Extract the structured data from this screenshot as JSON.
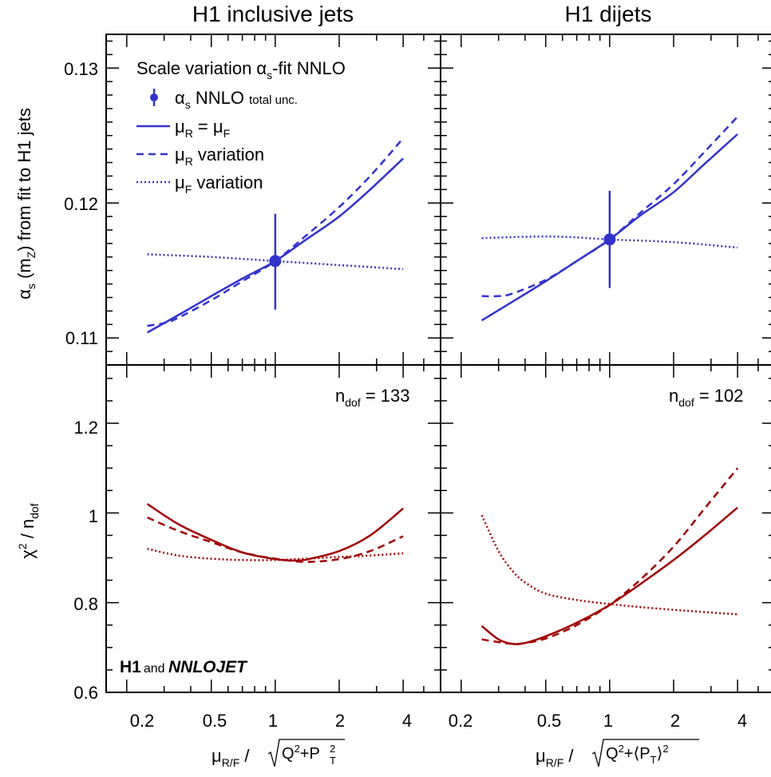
{
  "titles": {
    "left": "H1 inclusive jets",
    "right": "H1 dijets"
  },
  "axes": {
    "top_ylabel": {
      "a": "α",
      "a_sub": "s",
      "b": " (m",
      "b_sub": "Z",
      "c": ") from fit to H1 jets"
    },
    "bottom_ylabel": {
      "chi": "χ",
      "sup": "2",
      "mid": " / n",
      "sub": "dof"
    },
    "xlabel_left": {
      "mu": "μ",
      "sub": "R/F",
      "slash": " / ",
      "q": "Q",
      "q_sup": "2",
      "plus": "+P",
      "p_sup": "2",
      "p_sub": "T"
    },
    "xlabel_right": {
      "mu": "μ",
      "sub": "R/F",
      "slash": " / ",
      "q": "Q",
      "q_sup": "2",
      "plus": "+⟨P",
      "p_sub": "T",
      "close": "⟩",
      "close_sup": "2"
    },
    "top_yticks": [
      "0.11",
      "0.12",
      "0.13"
    ],
    "bottom_yticks": [
      "0.6",
      "0.8",
      "1",
      "1.2"
    ],
    "xticks": [
      "0.2",
      "0.5",
      "1",
      "2",
      "4"
    ]
  },
  "legend": {
    "title": {
      "pre": "Scale variation ",
      "a": "α",
      "a_sub": "s",
      "post": "-fit NNLO"
    },
    "point": {
      "a": "α",
      "a_sub": "s",
      "label": " NNLO ",
      "small": "total unc."
    },
    "solid": {
      "mu": "μ",
      "sub": "R",
      "eq": " = μ",
      "sub2": "F"
    },
    "dashed": {
      "mu": "μ",
      "sub": "R",
      "label": " variation"
    },
    "dotted": {
      "mu": "μ",
      "sub": "F",
      "label": " variation"
    }
  },
  "ndof": {
    "left": {
      "n": "n",
      "sub": "dof",
      "eq": " = 133"
    },
    "right": {
      "n": "n",
      "sub": "dof",
      "eq": " = 102"
    }
  },
  "logo": {
    "h1": "H1",
    "and": "and ",
    "nnlojet": "NNLOJET"
  },
  "colors": {
    "alphas": "#3333cc",
    "chi2": "#a00000",
    "frame": "#000000"
  },
  "chart_data": [
    {
      "type": "line",
      "panel": "top-left",
      "title": "H1 inclusive jets",
      "xscale": "log",
      "xlim": [
        0.16,
        6.0
      ],
      "ylim": [
        0.108,
        0.1325
      ],
      "series": [
        {
          "name": "μR = μF",
          "style": "solid",
          "x": [
            0.25,
            0.35,
            0.5,
            0.7,
            1.0,
            1.4,
            2.0,
            2.8,
            4.0
          ],
          "y": [
            0.1104,
            0.1117,
            0.1131,
            0.1144,
            0.1157,
            0.1173,
            0.119,
            0.121,
            0.1233
          ]
        },
        {
          "name": "μR variation",
          "style": "dashed",
          "x": [
            0.25,
            0.3,
            0.35,
            0.5,
            0.7,
            1.0,
            1.4,
            2.0,
            2.8,
            4.0
          ],
          "y": [
            0.1109,
            0.1111,
            0.1115,
            0.1128,
            0.1142,
            0.1157,
            0.1176,
            0.1197,
            0.122,
            0.1248
          ]
        },
        {
          "name": "μF variation",
          "style": "dotted",
          "x": [
            0.25,
            0.5,
            1.0,
            2.0,
            4.0
          ],
          "y": [
            0.1162,
            0.116,
            0.1157,
            0.1154,
            0.1151
          ]
        }
      ],
      "points": [
        {
          "x": 1.0,
          "y": 0.1157,
          "err_lo": 0.1121,
          "err_hi": 0.1192,
          "label": "αs NNLO total unc."
        }
      ]
    },
    {
      "type": "line",
      "panel": "top-right",
      "title": "H1 dijets",
      "xscale": "log",
      "xlim": [
        0.16,
        6.0
      ],
      "ylim": [
        0.108,
        0.1325
      ],
      "series": [
        {
          "name": "μR = μF",
          "style": "solid",
          "x": [
            0.25,
            0.35,
            0.5,
            0.7,
            1.0,
            1.4,
            2.0,
            2.8,
            4.0
          ],
          "y": [
            0.1113,
            0.1127,
            0.1142,
            0.1157,
            0.1173,
            0.1191,
            0.1208,
            0.1229,
            0.1251
          ]
        },
        {
          "name": "μR variation",
          "style": "dashed",
          "x": [
            0.25,
            0.3,
            0.35,
            0.5,
            0.7,
            1.0,
            1.4,
            2.0,
            2.8,
            4.0
          ],
          "y": [
            0.1131,
            0.1131,
            0.1133,
            0.1143,
            0.1157,
            0.1173,
            0.1193,
            0.1214,
            0.1238,
            0.1264
          ]
        },
        {
          "name": "μF variation",
          "style": "dotted",
          "x": [
            0.25,
            0.4,
            0.6,
            1.0,
            2.0,
            4.0
          ],
          "y": [
            0.1174,
            0.1175,
            0.1175,
            0.1173,
            0.1171,
            0.1167
          ]
        }
      ],
      "points": [
        {
          "x": 1.0,
          "y": 0.1173,
          "err_lo": 0.1137,
          "err_hi": 0.1209,
          "label": "αs NNLO total unc."
        }
      ]
    },
    {
      "type": "line",
      "panel": "bottom-left",
      "xlabel": "μR/F / √(Q²+P²T)",
      "xscale": "log",
      "xlim": [
        0.16,
        6.0
      ],
      "ylim": [
        0.6,
        1.33
      ],
      "annotation": "ndof = 133",
      "series": [
        {
          "name": "μR = μF",
          "style": "solid",
          "x": [
            0.25,
            0.35,
            0.5,
            0.7,
            1.0,
            1.2,
            1.4,
            2.0,
            2.8,
            4.0
          ],
          "y": [
            1.02,
            0.975,
            0.94,
            0.912,
            0.897,
            0.894,
            0.896,
            0.915,
            0.95,
            1.01
          ]
        },
        {
          "name": "μR variation",
          "style": "dashed",
          "x": [
            0.25,
            0.35,
            0.5,
            0.7,
            1.0,
            1.4,
            2.0,
            2.8,
            4.0
          ],
          "y": [
            0.99,
            0.96,
            0.935,
            0.912,
            0.898,
            0.891,
            0.897,
            0.915,
            0.948
          ]
        },
        {
          "name": "μF variation",
          "style": "dotted",
          "x": [
            0.25,
            0.35,
            0.5,
            0.7,
            1.0,
            1.4,
            2.0,
            2.8,
            4.0
          ],
          "y": [
            0.92,
            0.905,
            0.898,
            0.895,
            0.895,
            0.898,
            0.902,
            0.905,
            0.91
          ]
        }
      ]
    },
    {
      "type": "line",
      "panel": "bottom-right",
      "xlabel": "μR/F / √(Q²+⟨PT⟩²)",
      "xscale": "log",
      "xlim": [
        0.16,
        6.0
      ],
      "ylim": [
        0.6,
        1.33
      ],
      "annotation": "ndof = 102",
      "series": [
        {
          "name": "μR = μF",
          "style": "solid",
          "x": [
            0.25,
            0.3,
            0.35,
            0.4,
            0.5,
            0.7,
            1.0,
            1.4,
            2.0,
            2.8,
            4.0
          ],
          "y": [
            0.748,
            0.718,
            0.708,
            0.71,
            0.725,
            0.755,
            0.795,
            0.842,
            0.895,
            0.95,
            1.012
          ]
        },
        {
          "name": "μR variation",
          "style": "dashed",
          "x": [
            0.25,
            0.3,
            0.35,
            0.4,
            0.5,
            0.7,
            1.0,
            1.4,
            2.0,
            2.8,
            4.0
          ],
          "y": [
            0.718,
            0.712,
            0.708,
            0.71,
            0.72,
            0.75,
            0.795,
            0.852,
            0.925,
            1.01,
            1.1
          ]
        },
        {
          "name": "μF variation",
          "style": "dotted",
          "x": [
            0.25,
            0.3,
            0.35,
            0.4,
            0.5,
            0.7,
            1.0,
            1.4,
            2.0,
            2.8,
            4.0
          ],
          "y": [
            0.995,
            0.915,
            0.87,
            0.845,
            0.82,
            0.806,
            0.797,
            0.79,
            0.784,
            0.779,
            0.774
          ]
        }
      ]
    }
  ]
}
